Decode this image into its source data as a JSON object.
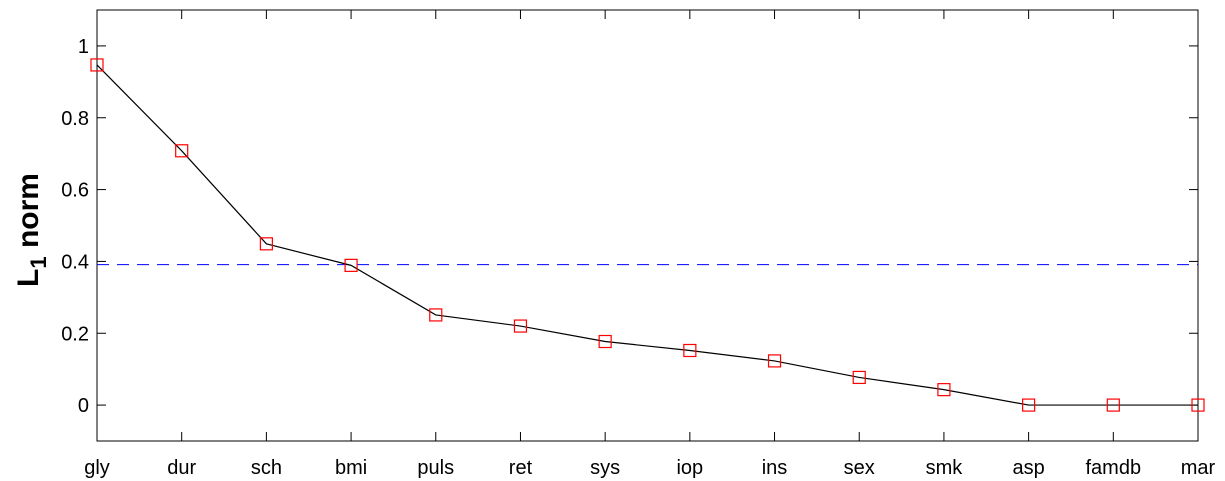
{
  "chart_data": {
    "type": "line",
    "title": "",
    "xlabel": "",
    "ylabel": {
      "main": "L",
      "subscript": "1",
      "rest": " norm"
    },
    "categories": [
      "gly",
      "dur",
      "sch",
      "bmi",
      "puls",
      "ret",
      "sys",
      "iop",
      "ins",
      "sex",
      "smk",
      "asp",
      "famdb",
      "mar"
    ],
    "series": [
      {
        "values": [
          0.947,
          0.708,
          0.449,
          0.389,
          0.251,
          0.22,
          0.177,
          0.152,
          0.123,
          0.077,
          0.043,
          0.0,
          0.0,
          0.0
        ],
        "line_color": "#000000",
        "marker": "square",
        "marker_color": "#ff0000"
      }
    ],
    "threshold": {
      "value": 0.391,
      "style": "dashed",
      "color": "#0000ff"
    },
    "ylim": [
      -0.1,
      1.1
    ],
    "yticks": [
      0,
      0.2,
      0.4,
      0.6,
      0.8,
      1
    ],
    "ytick_labels": [
      "0",
      "0.2",
      "0.4",
      "0.6",
      "0.8",
      "1"
    ],
    "grid": false,
    "legend": "none"
  }
}
